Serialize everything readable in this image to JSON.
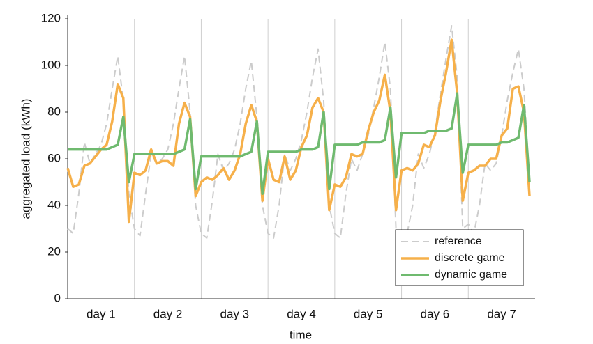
{
  "chart_data": {
    "type": "line",
    "xlabel": "time",
    "ylabel": "aggregated load (kWh)",
    "x": [
      0,
      2,
      4,
      6,
      8,
      10,
      12,
      14,
      16,
      18,
      20,
      22,
      24,
      26,
      28,
      30,
      32,
      34,
      36,
      38,
      40,
      42,
      44,
      46,
      48,
      50,
      52,
      54,
      56,
      58,
      60,
      62,
      64,
      66,
      68,
      70,
      72,
      74,
      76,
      78,
      80,
      82,
      84,
      86,
      88,
      90,
      92,
      94,
      96,
      98,
      100,
      102,
      104,
      106,
      108,
      110,
      112,
      114,
      116,
      118,
      120,
      122,
      124,
      126,
      128,
      130,
      132,
      134,
      136,
      138,
      140,
      142,
      144,
      146,
      148,
      150,
      152,
      154,
      156,
      158,
      160,
      162,
      164,
      166
    ],
    "xlim": [
      0,
      168
    ],
    "xticks": [
      {
        "value": 12,
        "label": "day 1"
      },
      {
        "value": 36,
        "label": "day 2"
      },
      {
        "value": 60,
        "label": "day 3"
      },
      {
        "value": 84,
        "label": "day 4"
      },
      {
        "value": 108,
        "label": "day 5"
      },
      {
        "value": 132,
        "label": "day 6"
      },
      {
        "value": 156,
        "label": "day 7"
      }
    ],
    "ylim": [
      0,
      120
    ],
    "yticks": [
      0,
      20,
      40,
      60,
      80,
      100,
      120
    ],
    "grid": true,
    "legend": "lower right",
    "series": [
      {
        "name": "reference",
        "color": "#cccccc",
        "dashed": true,
        "values": [
          30,
          28,
          45,
          67,
          58,
          62,
          66,
          75,
          90,
          104,
          85,
          45,
          30,
          27,
          45,
          62,
          58,
          60,
          64,
          75,
          90,
          104,
          80,
          40,
          28,
          26,
          42,
          62,
          55,
          58,
          64,
          75,
          90,
          102,
          78,
          40,
          28,
          26,
          40,
          62,
          55,
          60,
          68,
          80,
          95,
          107,
          85,
          40,
          28,
          26,
          45,
          60,
          55,
          62,
          70,
          82,
          95,
          110,
          90,
          30,
          27,
          28,
          40,
          62,
          56,
          62,
          72,
          88,
          103,
          117,
          95,
          30,
          32,
          28,
          40,
          58,
          55,
          58,
          70,
          85,
          97,
          107,
          90,
          50
        ]
      },
      {
        "name": "discrete game",
        "color": "#f6b04a",
        "values": [
          56,
          48,
          49,
          57,
          58,
          61,
          64,
          66,
          76,
          92,
          86,
          33,
          54,
          53,
          55,
          64,
          58,
          59,
          59,
          57,
          75,
          84,
          78,
          44,
          50,
          52,
          51,
          53,
          56,
          51,
          55,
          62,
          75,
          83,
          76,
          42,
          60,
          51,
          50,
          61,
          51,
          55,
          65,
          70,
          82,
          86,
          80,
          38,
          49,
          48,
          52,
          62,
          61,
          62,
          72,
          80,
          85,
          96,
          80,
          38,
          55,
          56,
          55,
          58,
          66,
          65,
          70,
          85,
          97,
          111,
          88,
          42,
          54,
          55,
          57,
          57,
          60,
          60,
          70,
          73,
          90,
          91,
          80,
          44
        ]
      },
      {
        "name": "dynamic game",
        "color": "#6fba6f",
        "values": [
          64,
          64,
          64,
          64,
          64,
          64,
          64,
          64,
          65,
          66,
          78,
          50,
          62,
          62,
          62,
          62,
          62,
          62,
          62,
          62,
          63,
          64,
          77,
          47,
          61,
          61,
          61,
          61,
          61,
          61,
          61,
          61,
          62,
          63,
          76,
          45,
          63,
          63,
          63,
          63,
          63,
          63,
          64,
          64,
          64,
          65,
          80,
          47,
          66,
          66,
          66,
          66,
          66,
          67,
          67,
          67,
          67,
          68,
          82,
          52,
          71,
          71,
          71,
          71,
          71,
          72,
          72,
          72,
          72,
          73,
          88,
          54,
          66,
          66,
          66,
          66,
          66,
          66,
          67,
          67,
          68,
          69,
          83,
          50
        ]
      }
    ]
  }
}
